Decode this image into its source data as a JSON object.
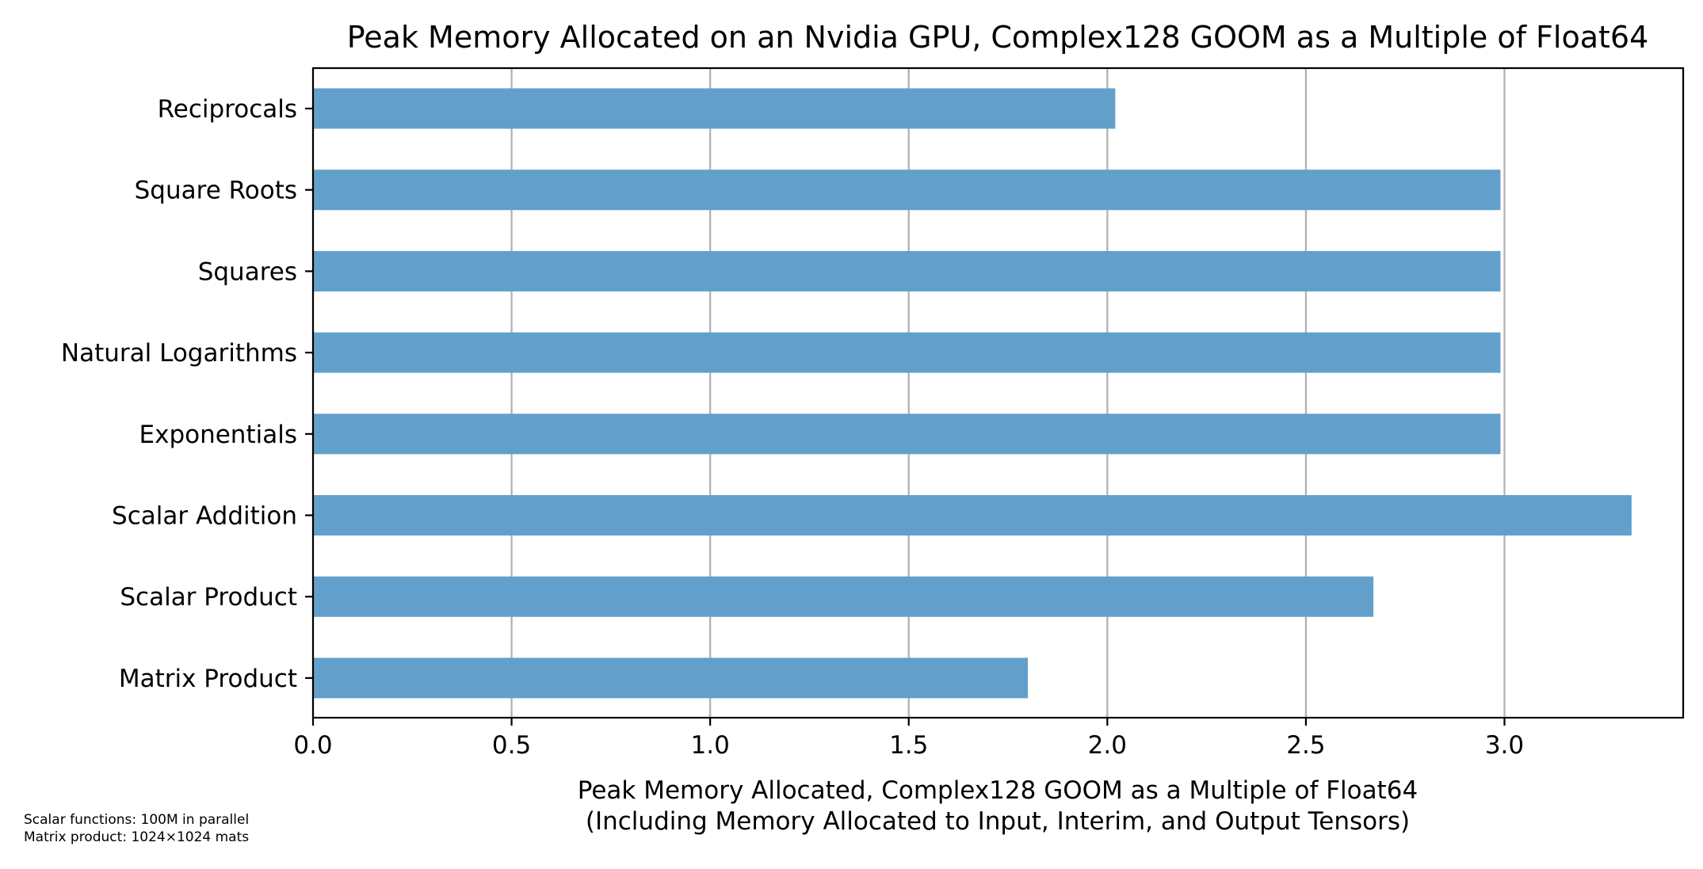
{
  "chart_data": {
    "type": "bar",
    "orientation": "horizontal",
    "title": "Peak Memory Allocated on an Nvidia GPU, Complex128 GOOM as a Multiple of Float64",
    "xlabel": [
      "Peak Memory Allocated, Complex128 GOOM as a Multiple of Float64",
      "(Including Memory Allocated to Input, Interim, and Output Tensors)"
    ],
    "ylabel": "",
    "categories": [
      "Reciprocals",
      "Square Roots",
      "Squares",
      "Natural Logarithms",
      "Exponentials",
      "Scalar Addition",
      "Scalar Product",
      "Matrix Product"
    ],
    "values": [
      2.02,
      2.99,
      2.99,
      2.99,
      2.99,
      3.32,
      2.67,
      1.8
    ],
    "xlim": [
      0,
      3.45
    ],
    "xticks": [
      0.0,
      0.5,
      1.0,
      1.5,
      2.0,
      2.5,
      3.0
    ],
    "xtick_labels": [
      "0.0",
      "0.5",
      "1.0",
      "1.5",
      "2.0",
      "2.5",
      "3.0"
    ],
    "grid": "x-axis vertical lines",
    "bar_color": "#62a0cb",
    "annotations": [
      "Scalar functions: 100M in parallel",
      "Matrix product: 1024×1024 mats"
    ]
  }
}
